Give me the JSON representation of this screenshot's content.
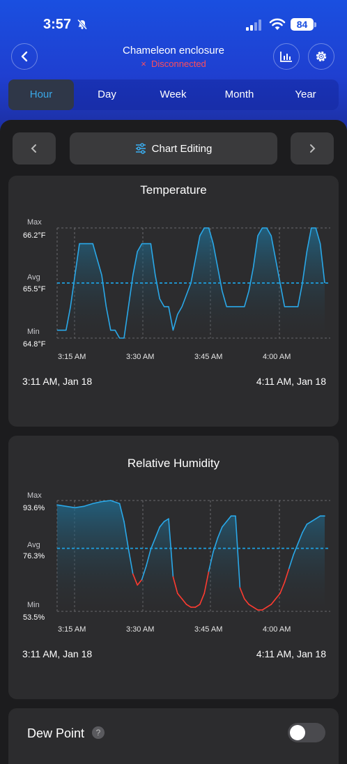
{
  "status": {
    "time": "3:57",
    "battery": "84"
  },
  "header": {
    "title": "Chameleon enclosure",
    "status": "Disconnected",
    "status_icon": "×"
  },
  "tabs": [
    {
      "label": "Hour",
      "active": true
    },
    {
      "label": "Day",
      "active": false
    },
    {
      "label": "Week",
      "active": false
    },
    {
      "label": "Month",
      "active": false
    },
    {
      "label": "Year",
      "active": false
    }
  ],
  "toolbar": {
    "edit_label": "Chart Editing"
  },
  "charts": [
    {
      "title": "Temperature",
      "max_label": "Max",
      "max_value": "66.2°F",
      "avg_label": "Avg",
      "avg_value": "65.5°F",
      "min_label": "Min",
      "min_value": "64.8°F",
      "range_start": "3:11 AM,  Jan 18",
      "range_end": "4:11 AM,  Jan 18"
    },
    {
      "title": "Relative Humidity",
      "max_label": "Max",
      "max_value": "93.6%",
      "avg_label": "Avg",
      "avg_value": "76.3%",
      "min_label": "Min",
      "min_value": "53.5%",
      "range_start": "3:11 AM,  Jan 18",
      "range_end": "4:11 AM,  Jan 18"
    }
  ],
  "chart_data": [
    {
      "type": "line",
      "title": "Temperature",
      "x_ticks": [
        "3:15 AM",
        "3:30 AM",
        "3:45 AM",
        "4:00 AM"
      ],
      "x_minutes_after_311": [
        0,
        2,
        3,
        4,
        5,
        6,
        8,
        10,
        11,
        12,
        13,
        14,
        15,
        16,
        17,
        18,
        19,
        21,
        22,
        23,
        24,
        25,
        26,
        27,
        28,
        30,
        31,
        32,
        33,
        34,
        35,
        36,
        37,
        38,
        39,
        40,
        41,
        42,
        43,
        44,
        45,
        46,
        47,
        48,
        49,
        50,
        51,
        52,
        53,
        54,
        55,
        56,
        57,
        58,
        59,
        60
      ],
      "y": [
        64.9,
        64.9,
        65.2,
        65.6,
        66.0,
        66.0,
        66.0,
        65.6,
        65.2,
        64.9,
        64.9,
        64.8,
        64.8,
        65.2,
        65.6,
        65.9,
        66.0,
        66.0,
        65.6,
        65.3,
        65.2,
        65.2,
        64.9,
        65.1,
        65.2,
        65.5,
        65.8,
        66.1,
        66.2,
        66.2,
        66.0,
        65.7,
        65.4,
        65.2,
        65.2,
        65.2,
        65.2,
        65.2,
        65.4,
        65.7,
        66.1,
        66.2,
        66.2,
        66.1,
        65.8,
        65.5,
        65.2,
        65.2,
        65.2,
        65.2,
        65.5,
        65.9,
        66.2,
        66.2,
        66.0,
        65.5
      ],
      "y_max": 66.2,
      "y_avg": 65.5,
      "y_min": 64.8,
      "ylim": [
        64.8,
        66.2
      ],
      "line_color": "#2aa8e8",
      "avg_color": "#1ea0e0"
    },
    {
      "type": "line",
      "title": "Relative Humidity",
      "x_ticks": [
        "3:15 AM",
        "3:30 AM",
        "3:45 AM",
        "4:00 AM"
      ],
      "x_minutes_after_311": [
        0,
        2,
        4,
        6,
        8,
        10,
        12,
        14,
        15,
        16,
        17,
        18,
        19,
        20,
        21,
        22,
        23,
        24,
        25,
        26,
        27,
        28,
        29,
        30,
        31,
        32,
        33,
        34,
        35,
        36,
        37,
        38,
        39,
        40,
        41,
        42,
        43,
        44,
        45,
        46,
        47,
        48,
        49,
        50,
        51,
        52,
        53,
        54,
        55,
        56,
        57,
        58,
        59,
        60
      ],
      "y": [
        92.0,
        91.5,
        91.0,
        91.5,
        92.5,
        93.2,
        93.6,
        92.5,
        86,
        76,
        67,
        63,
        65,
        70,
        76,
        80,
        84,
        86,
        87,
        66,
        60,
        58,
        56,
        55,
        55,
        56,
        60,
        68,
        75,
        80,
        84,
        86,
        88,
        88,
        62,
        58,
        56,
        55,
        54,
        54,
        55,
        56,
        58,
        60,
        64,
        69,
        74,
        78,
        82,
        85,
        86,
        87,
        88,
        88
      ],
      "y_max": 93.6,
      "y_avg": 76.3,
      "y_min": 53.5,
      "ylim": [
        53.5,
        93.6
      ],
      "line_color": "#2aa8e8",
      "below_color": "#ff3b30",
      "avg_color": "#1ea0e0"
    }
  ],
  "dew_point": {
    "label": "Dew Point",
    "help": "?",
    "enabled": false
  }
}
